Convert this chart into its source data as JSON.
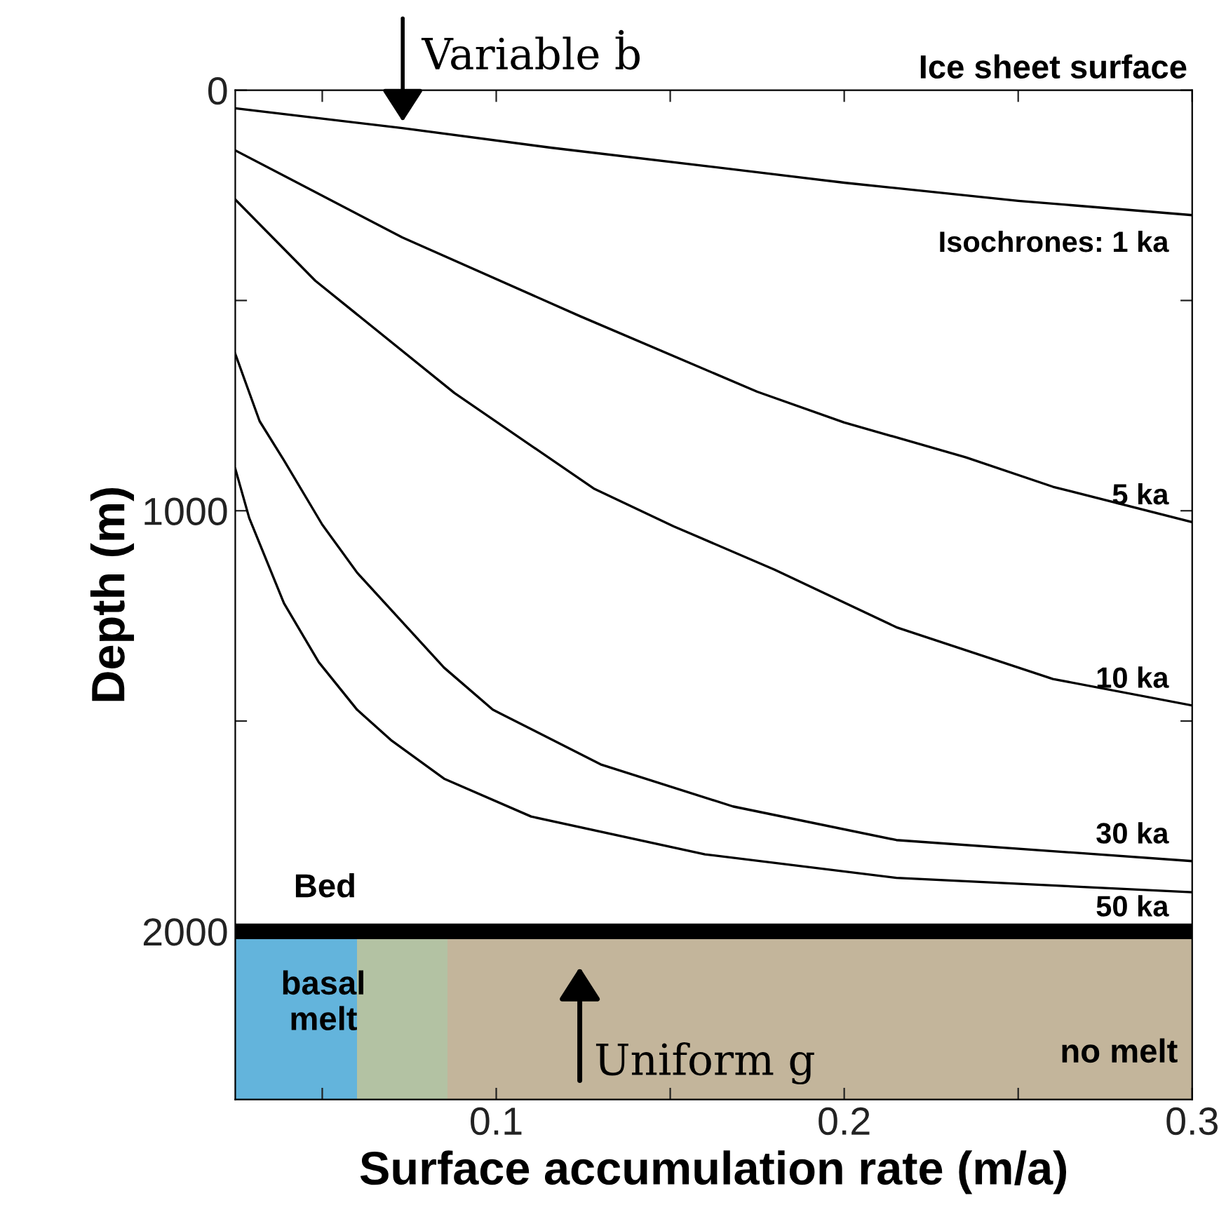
{
  "chart_data": {
    "type": "line",
    "xlabel": "Surface accumulation rate (m/a)",
    "ylabel": "Depth (m)",
    "xlim": [
      0.025,
      0.3
    ],
    "xticks": [
      {
        "value": 0.05,
        "label": null
      },
      0.1,
      {
        "value": 0.15,
        "label": null
      },
      0.2,
      {
        "value": 0.25,
        "label": null
      },
      0.3
    ],
    "ylim": [
      2400,
      0
    ],
    "yticks": [
      0,
      {
        "value": 500,
        "label": null
      },
      1000,
      {
        "value": 1500,
        "label": null
      },
      2000
    ],
    "grid": false,
    "marker": "none",
    "line_style": "solid",
    "series": [
      {
        "name": "Isochrones: 1 ka",
        "color": "#000000",
        "x": [
          0.025,
          0.073,
          0.116,
          0.16,
          0.2,
          0.25,
          0.3
        ],
        "values": [
          43,
          90,
          137,
          180,
          220,
          263,
          297
        ]
      },
      {
        "name": "5 ka",
        "color": "#000000",
        "x": [
          0.025,
          0.073,
          0.124,
          0.175,
          0.2,
          0.235,
          0.26,
          0.3
        ],
        "values": [
          143,
          350,
          537,
          717,
          790,
          873,
          943,
          1027
        ]
      },
      {
        "name": "10 ka",
        "color": "#000000",
        "x": [
          0.025,
          0.048,
          0.088,
          0.128,
          0.151,
          0.18,
          0.215,
          0.26,
          0.3
        ],
        "values": [
          260,
          453,
          720,
          947,
          1037,
          1140,
          1277,
          1400,
          1463
        ]
      },
      {
        "name": "30 ka",
        "color": "#000000",
        "x": [
          0.025,
          0.032,
          0.039,
          0.05,
          0.06,
          0.085,
          0.099,
          0.13,
          0.168,
          0.215,
          0.3
        ],
        "values": [
          627,
          787,
          880,
          1033,
          1147,
          1373,
          1473,
          1603,
          1703,
          1783,
          1833
        ]
      },
      {
        "name": "50 ka",
        "color": "#000000",
        "x": [
          0.025,
          0.029,
          0.039,
          0.049,
          0.06,
          0.07,
          0.085,
          0.11,
          0.16,
          0.215,
          0.3
        ],
        "values": [
          900,
          1017,
          1220,
          1360,
          1473,
          1547,
          1637,
          1727,
          1817,
          1873,
          1907
        ]
      }
    ],
    "ref_lines": [
      {
        "axis": "y",
        "value": 2000,
        "label": "Bed",
        "color": "#000000"
      }
    ],
    "bands": [
      {
        "axis": "y",
        "from": 2000,
        "to": 2400,
        "color": "#c3b59b"
      },
      {
        "axis": "x",
        "from": 0.025,
        "to": 0.06,
        "color": "#63b4dc"
      },
      {
        "axis": "x",
        "from": 0.06,
        "to": 0.086,
        "color": "#b3c2a3"
      }
    ],
    "annotations": [
      "Ice sheet surface",
      "Variable ḃ",
      "Uniform g",
      "basal melt",
      "no melt"
    ]
  }
}
